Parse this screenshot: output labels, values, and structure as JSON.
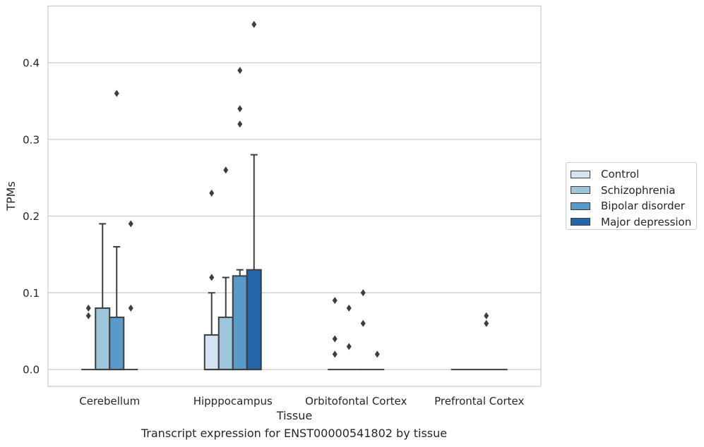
{
  "chart_data": {
    "type": "box",
    "xlabel": "Tissue",
    "ylabel": "TPMs",
    "caption": "Transcript expression for ENST00000541802 by tissue",
    "categories": [
      "Cerebellum",
      "Hipppocampus",
      "Orbitofontal Cortex",
      "Prefrontal Cortex"
    ],
    "ylim": [
      -0.022,
      0.474
    ],
    "yticks": [
      0.0,
      0.1,
      0.2,
      0.3,
      0.4
    ],
    "ytick_labels": [
      "0.0",
      "0.1",
      "0.2",
      "0.3",
      "0.4"
    ],
    "grid": "horizontal",
    "legend_position": "right",
    "series": [
      {
        "name": "Control",
        "color": "#d3e3f2",
        "boxes": [
          {
            "category": "Cerebellum",
            "q1": 0,
            "median": 0,
            "q3": 0,
            "whisker_low": 0,
            "whisker_high": 0,
            "outliers": [
              0.07,
              0.08
            ]
          },
          {
            "category": "Hipppocampus",
            "q1": 0,
            "median": 0,
            "q3": 0.045,
            "whisker_low": 0,
            "whisker_high": 0.1,
            "outliers": [
              0.12,
              0.23
            ]
          },
          {
            "category": "Orbitofontal Cortex",
            "q1": 0,
            "median": 0,
            "q3": 0,
            "whisker_low": 0,
            "whisker_high": 0,
            "outliers": [
              0.02,
              0.04,
              0.09
            ]
          },
          {
            "category": "Prefrontal Cortex",
            "q1": 0,
            "median": 0,
            "q3": 0,
            "whisker_low": 0,
            "whisker_high": 0,
            "outliers": []
          }
        ]
      },
      {
        "name": "Schizophrenia",
        "color": "#9dc6dd",
        "boxes": [
          {
            "category": "Cerebellum",
            "q1": 0,
            "median": 0,
            "q3": 0.08,
            "whisker_low": 0,
            "whisker_high": 0.19,
            "outliers": []
          },
          {
            "category": "Hipppocampus",
            "q1": 0,
            "median": 0,
            "q3": 0.068,
            "whisker_low": 0,
            "whisker_high": 0.12,
            "outliers": [
              0.26
            ]
          },
          {
            "category": "Orbitofontal Cortex",
            "q1": 0,
            "median": 0,
            "q3": 0,
            "whisker_low": 0,
            "whisker_high": 0,
            "outliers": [
              0.03,
              0.08
            ]
          },
          {
            "category": "Prefrontal Cortex",
            "q1": 0,
            "median": 0,
            "q3": 0,
            "whisker_low": 0,
            "whisker_high": 0,
            "outliers": []
          }
        ]
      },
      {
        "name": "Bipolar disorder",
        "color": "#5a9ac8",
        "boxes": [
          {
            "category": "Cerebellum",
            "q1": 0,
            "median": 0,
            "q3": 0.068,
            "whisker_low": 0,
            "whisker_high": 0.16,
            "outliers": [
              0.36
            ]
          },
          {
            "category": "Hipppocampus",
            "q1": 0,
            "median": 0,
            "q3": 0.122,
            "whisker_low": 0,
            "whisker_high": 0.13,
            "outliers": [
              0.32,
              0.34,
              0.39
            ]
          },
          {
            "category": "Orbitofontal Cortex",
            "q1": 0,
            "median": 0,
            "q3": 0,
            "whisker_low": 0,
            "whisker_high": 0,
            "outliers": [
              0.06,
              0.1
            ]
          },
          {
            "category": "Prefrontal Cortex",
            "q1": 0,
            "median": 0,
            "q3": 0,
            "whisker_low": 0,
            "whisker_high": 0,
            "outliers": [
              0.06,
              0.07
            ]
          }
        ]
      },
      {
        "name": "Major depression",
        "color": "#2464a8",
        "boxes": [
          {
            "category": "Cerebellum",
            "q1": 0,
            "median": 0,
            "q3": 0,
            "whisker_low": 0,
            "whisker_high": 0,
            "outliers": [
              0.08,
              0.19
            ]
          },
          {
            "category": "Hipppocampus",
            "q1": 0,
            "median": 0,
            "q3": 0.13,
            "whisker_low": 0,
            "whisker_high": 0.28,
            "outliers": [
              0.45
            ]
          },
          {
            "category": "Orbitofontal Cortex",
            "q1": 0,
            "median": 0,
            "q3": 0,
            "whisker_low": 0,
            "whisker_high": 0,
            "outliers": [
              0.02
            ]
          },
          {
            "category": "Prefrontal Cortex",
            "q1": 0,
            "median": 0,
            "q3": 0,
            "whisker_low": 0,
            "whisker_high": 0,
            "outliers": []
          }
        ]
      }
    ]
  }
}
